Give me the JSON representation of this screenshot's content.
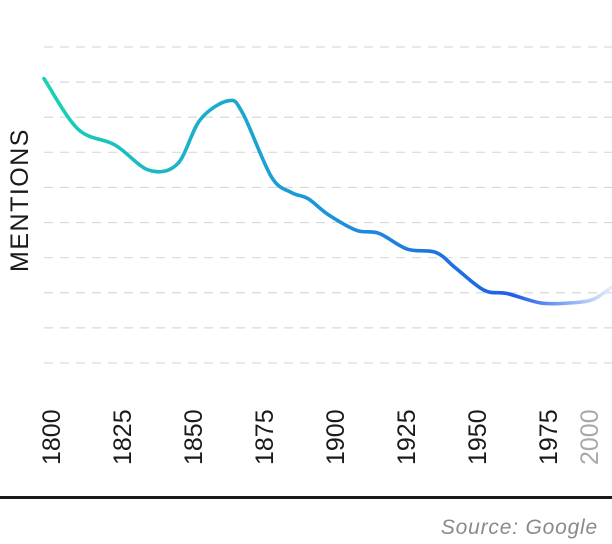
{
  "chart_data": {
    "type": "line",
    "xlabel": "",
    "ylabel": "MENTIONS",
    "x": [
      1800,
      1812,
      1825,
      1837,
      1847,
      1855,
      1865,
      1870,
      1880,
      1887,
      1893,
      1900,
      1910,
      1918,
      1928,
      1938,
      1945,
      1955,
      1963,
      1975,
      1985,
      1993,
      2000
    ],
    "values": [
      8.5,
      6.9,
      6.4,
      5.6,
      5.8,
      7.2,
      7.8,
      7.4,
      5.4,
      4.9,
      4.7,
      4.2,
      3.7,
      3.6,
      3.1,
      3.0,
      2.5,
      1.8,
      1.7,
      1.4,
      1.4,
      1.5,
      1.9
    ],
    "ylim": [
      -0.5,
      9.5
    ],
    "xlim": [
      1800,
      2000
    ],
    "xticks": [
      "1800",
      "1825",
      "1850",
      "1875",
      "1900",
      "1925",
      "1950",
      "1975",
      "2000"
    ],
    "grid": true,
    "colors": {
      "line_start": "#19d1b4",
      "line_mid": "#1c93dc",
      "line_end": "#1f5ee8",
      "line_fade": "#e6edfb",
      "grid": "#d9d9d9",
      "text": "#1a1a1a",
      "faded_tick": "#a9a9a9"
    }
  },
  "footer": {
    "source": "Source: Google"
  }
}
